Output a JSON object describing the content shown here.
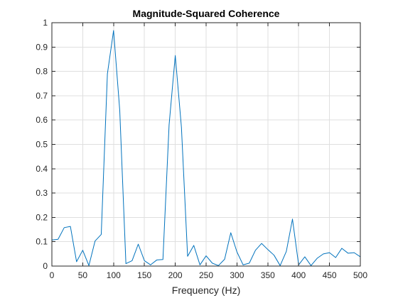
{
  "chart_data": {
    "type": "line",
    "title": "Magnitude-Squared Coherence",
    "xlabel": "Frequency (Hz)",
    "ylabel": "",
    "xlim": [
      0,
      500
    ],
    "ylim": [
      0,
      1
    ],
    "xticks": [
      0,
      50,
      100,
      150,
      200,
      250,
      300,
      350,
      400,
      450,
      500
    ],
    "yticks": [
      0,
      0.1,
      0.2,
      0.3,
      0.4,
      0.5,
      0.6,
      0.7,
      0.8,
      0.9,
      1
    ],
    "grid": true,
    "legend": false,
    "series": [
      {
        "color": "#0072BD",
        "x": [
          0,
          10,
          20,
          30,
          40,
          50,
          60,
          70,
          80,
          90,
          100,
          110,
          120,
          130,
          140,
          150,
          160,
          170,
          180,
          190,
          200,
          210,
          220,
          230,
          240,
          250,
          260,
          270,
          280,
          290,
          300,
          310,
          320,
          330,
          340,
          350,
          360,
          370,
          380,
          390,
          400,
          410,
          420,
          430,
          440,
          450,
          460,
          470,
          480,
          490,
          500
        ],
        "y": [
          0.107,
          0.11,
          0.158,
          0.163,
          0.018,
          0.065,
          0.002,
          0.103,
          0.13,
          0.79,
          0.968,
          0.64,
          0.01,
          0.022,
          0.09,
          0.022,
          0.005,
          0.025,
          0.027,
          0.58,
          0.865,
          0.57,
          0.04,
          0.085,
          0.005,
          0.042,
          0.012,
          0.002,
          0.028,
          0.137,
          0.058,
          0.005,
          0.012,
          0.065,
          0.093,
          0.068,
          0.045,
          0.002,
          0.06,
          0.193,
          0.005,
          0.038,
          0.002,
          0.032,
          0.05,
          0.055,
          0.035,
          0.073,
          0.053,
          0.055,
          0.038
        ]
      }
    ]
  }
}
